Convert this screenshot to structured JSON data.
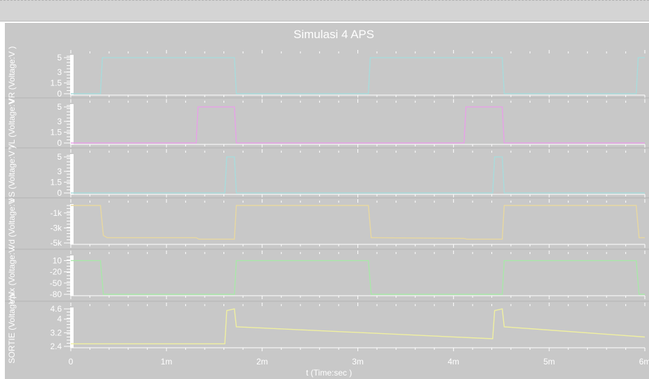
{
  "window": {
    "background": "#c8c8c8",
    "plot_background": "#c8c8c8",
    "text_color": "#ffffff"
  },
  "chart_data": {
    "type": "line",
    "title": "Simulasi 4 APS",
    "xlabel": "t (Time:sec )",
    "xlim": [
      0,
      0.006
    ],
    "x_ticks": [
      {
        "value": 0,
        "label": "0"
      },
      {
        "value": 0.001,
        "label": "1m"
      },
      {
        "value": 0.002,
        "label": "2m"
      },
      {
        "value": 0.003,
        "label": "3m"
      },
      {
        "value": 0.004,
        "label": "4m"
      },
      {
        "value": 0.005,
        "label": "5m"
      },
      {
        "value": 0.006,
        "label": "6m"
      }
    ],
    "panels": [
      {
        "id": "vr",
        "ylabel": "VR (Voltage:V )",
        "ylim": [
          0,
          5.2
        ],
        "yticks": [
          {
            "value": 0,
            "label": "0"
          },
          {
            "value": 1.5,
            "label": "1.5"
          },
          {
            "value": 3,
            "label": "3"
          },
          {
            "value": 5,
            "label": "5"
          }
        ],
        "series": [
          {
            "color": "#a8dcdc",
            "x": [
              0,
              0.00031,
              0.00033,
              0.00171,
              0.00173,
              0.00311,
              0.00313,
              0.00451,
              0.00453,
              0.00591,
              0.00593,
              0.006
            ],
            "y": [
              0,
              0,
              5,
              5,
              0,
              0,
              5,
              5,
              0,
              0,
              5,
              5
            ]
          }
        ]
      },
      {
        "id": "vl",
        "ylabel": "VL (Voltage:V",
        "ylim": [
          0,
          5.2
        ],
        "yticks": [
          {
            "value": 0,
            "label": "0"
          },
          {
            "value": 1.5,
            "label": "1.5"
          },
          {
            "value": 3,
            "label": "3"
          },
          {
            "value": 5,
            "label": "5"
          }
        ],
        "series": [
          {
            "color": "#e8a0e8",
            "x": [
              0,
              0.00131,
              0.00133,
              0.00171,
              0.00173,
              0.00411,
              0.00413,
              0.00451,
              0.00453,
              0.006
            ],
            "y": [
              0,
              0,
              5,
              5,
              0,
              0,
              5,
              5,
              0,
              0
            ]
          }
        ]
      },
      {
        "id": "vs",
        "ylabel": "VS (Voltage:V )",
        "ylim": [
          0,
          5.2
        ],
        "yticks": [
          {
            "value": 0,
            "label": "0"
          },
          {
            "value": 1.5,
            "label": "1.5"
          },
          {
            "value": 3,
            "label": "3"
          },
          {
            "value": 5,
            "label": "5"
          }
        ],
        "series": [
          {
            "color": "#a8dcdc",
            "x": [
              0,
              0.00161,
              0.00163,
              0.00171,
              0.00173,
              0.00441,
              0.00443,
              0.00451,
              0.00453,
              0.006
            ],
            "y": [
              0,
              0,
              5,
              5,
              0,
              0,
              5,
              5,
              0,
              0
            ]
          }
        ]
      },
      {
        "id": "vd",
        "ylabel": "Vd (Voltage:V",
        "ylim": [
          -5000,
          0
        ],
        "yticks": [
          {
            "value": -1000,
            "label": "-1k"
          },
          {
            "value": -3000,
            "label": "-3k"
          },
          {
            "value": -5000,
            "label": "-5k"
          }
        ],
        "series": [
          {
            "color": "#e8d8a0",
            "x": [
              0,
              0.00031,
              0.00034,
              0.00038,
              0.00131,
              0.00134,
              0.00171,
              0.00173,
              0.00311,
              0.00314,
              0.00318,
              0.00411,
              0.00414,
              0.00451,
              0.00453,
              0.00591,
              0.00594,
              0.006
            ],
            "y": [
              0,
              0,
              -4000,
              -4300,
              -4300,
              -4500,
              -4500,
              0,
              0,
              -4300,
              -4300,
              -4400,
              -4500,
              -4500,
              0,
              0,
              -4300,
              -4300
            ]
          }
        ]
      },
      {
        "id": "vpix",
        "ylabel": "Vpix (Voltage:V",
        "ylim": [
          -80,
          20
        ],
        "yticks": [
          {
            "value": 10,
            "label": "10"
          },
          {
            "value": -20,
            "label": "-20"
          },
          {
            "value": -50,
            "label": "-50"
          },
          {
            "value": -80,
            "label": "-80"
          }
        ],
        "series": [
          {
            "color": "#a8e8a8",
            "x": [
              0,
              0.00031,
              0.00034,
              0.00171,
              0.00173,
              0.00311,
              0.00314,
              0.00451,
              0.00453,
              0.00591,
              0.00594,
              0.006
            ],
            "y": [
              10,
              10,
              -80,
              -80,
              10,
              10,
              -80,
              -80,
              10,
              10,
              -80,
              -80
            ]
          }
        ]
      },
      {
        "id": "sortie",
        "ylabel": "SORTIE (Voltage:V",
        "ylim": [
          2.4,
          4.6
        ],
        "yticks": [
          {
            "value": 2.4,
            "label": "2.4"
          },
          {
            "value": 3.2,
            "label": "3.2"
          },
          {
            "value": 4,
            "label": "4"
          },
          {
            "value": 4.6,
            "label": "4.6"
          }
        ],
        "series": [
          {
            "color": "#f0f0a0",
            "x": [
              0,
              0.00161,
              0.00163,
              0.00171,
              0.00173,
              0.00441,
              0.00443,
              0.00451,
              0.00453,
              0.006
            ],
            "y": [
              2.55,
              2.55,
              4.5,
              4.6,
              3.55,
              2.85,
              4.5,
              4.6,
              3.55,
              2.95
            ]
          }
        ]
      }
    ]
  }
}
